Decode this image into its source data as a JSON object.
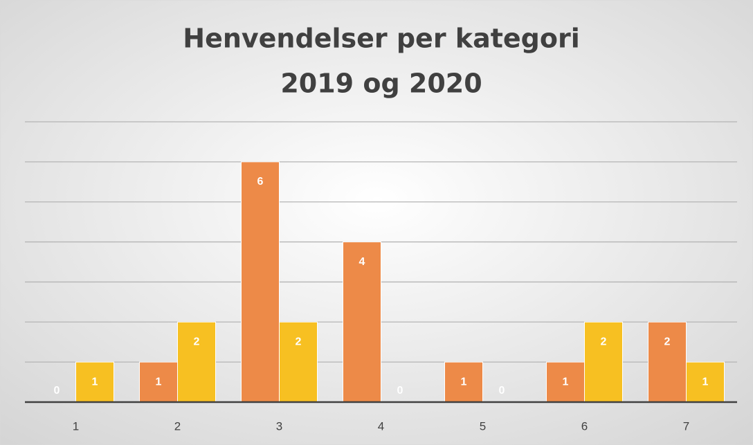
{
  "chart_data": {
    "type": "bar",
    "title": [
      "Henvendelser per kategori",
      "2019 og 2020"
    ],
    "categories": [
      "1",
      "2",
      "3",
      "4",
      "5",
      "6",
      "7"
    ],
    "series": [
      {
        "color": "#ed8a48",
        "values": [
          0,
          1,
          6,
          4,
          1,
          1,
          2
        ]
      },
      {
        "color": "#f7c022",
        "values": [
          1,
          2,
          2,
          0,
          0,
          2,
          1
        ]
      }
    ],
    "ylim": [
      0,
      7
    ],
    "yticks": [
      0,
      1,
      2,
      3,
      4,
      5,
      6,
      7
    ],
    "grid": true
  }
}
